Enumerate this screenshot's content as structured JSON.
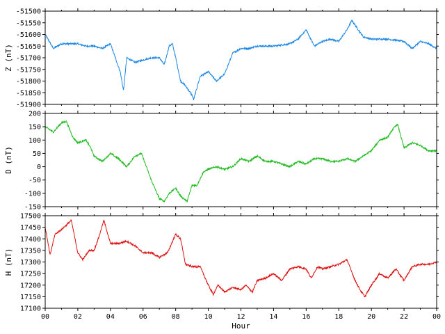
{
  "chart_data": [
    {
      "type": "line",
      "panel": "Z",
      "ylabel": "Z (nT)",
      "color": "#1e88e5",
      "xlim": [
        0,
        24
      ],
      "ylim": [
        -51900,
        -51500
      ],
      "yticks": [
        -51500,
        -51550,
        -51600,
        -51650,
        -51700,
        -51750,
        -51800,
        -51850,
        -51900
      ],
      "series": [
        {
          "x": [
            0,
            0.5,
            1,
            1.5,
            2,
            2.5,
            3,
            3.5,
            4,
            4.3,
            4.6,
            4.8,
            5.0,
            5.5,
            6,
            6.5,
            7.0,
            7.3,
            7.6,
            7.8,
            8.0,
            8.3,
            8.6,
            9.0,
            9.1,
            9.5,
            10.0,
            10.5,
            11.0,
            11.5,
            12,
            12.5,
            13,
            14,
            15,
            15.5,
            16.0,
            16.5,
            17,
            17.5,
            18.0,
            18.5,
            18.8,
            19.0,
            19.5,
            20,
            21,
            22,
            22.5,
            23,
            23.5,
            24
          ],
          "y": [
            -51600,
            -51660,
            -51640,
            -51640,
            -51640,
            -51650,
            -51650,
            -51660,
            -51640,
            -51700,
            -51760,
            -51840,
            -51700,
            -51720,
            -51710,
            -51700,
            -51700,
            -51730,
            -51650,
            -51640,
            -51700,
            -51800,
            -51820,
            -51860,
            -51880,
            -51780,
            -51760,
            -51800,
            -51770,
            -51680,
            -51660,
            -51660,
            -51650,
            -51650,
            -51640,
            -51620,
            -51580,
            -51650,
            -51630,
            -51620,
            -51630,
            -51580,
            -51540,
            -51560,
            -51610,
            -51620,
            -51620,
            -51630,
            -51660,
            -51630,
            -51640,
            -51660
          ]
        }
      ]
    },
    {
      "type": "line",
      "panel": "D",
      "ylabel": "D (nT)",
      "color": "#22bb22",
      "xlim": [
        0,
        24
      ],
      "ylim": [
        -150,
        200
      ],
      "yticks": [
        200,
        150,
        100,
        50,
        0,
        -50,
        -100,
        -150
      ],
      "series": [
        {
          "x": [
            0,
            0.5,
            1,
            1.3,
            1.7,
            2,
            2.5,
            2.8,
            3,
            3.5,
            4,
            4.5,
            5,
            5.5,
            5.9,
            6.2,
            6.5,
            7.0,
            7.3,
            7.6,
            8,
            8.3,
            8.7,
            9.0,
            9.3,
            9.7,
            10,
            10.5,
            11,
            11.5,
            12,
            12.5,
            13,
            13.5,
            14,
            14.5,
            15,
            15.5,
            16,
            16.5,
            17,
            17.5,
            18,
            18.5,
            19,
            19.5,
            20,
            20.5,
            21,
            21.3,
            21.6,
            22,
            22.5,
            23,
            23.5,
            24
          ],
          "y": [
            150,
            130,
            165,
            170,
            110,
            90,
            100,
            70,
            40,
            20,
            50,
            30,
            0,
            40,
            50,
            0,
            -50,
            -120,
            -130,
            -100,
            -80,
            -110,
            -130,
            -70,
            -70,
            -20,
            -10,
            0,
            -10,
            0,
            30,
            20,
            40,
            20,
            20,
            10,
            0,
            20,
            10,
            30,
            30,
            20,
            20,
            30,
            20,
            40,
            60,
            100,
            110,
            140,
            160,
            70,
            90,
            80,
            60,
            60
          ]
        }
      ]
    },
    {
      "type": "line",
      "panel": "H",
      "ylabel": "H (nT)",
      "xlabel": "Hour",
      "color": "#dd1111",
      "xlim": [
        0,
        24
      ],
      "ylim": [
        17100,
        17500
      ],
      "yticks": [
        17500,
        17450,
        17400,
        17350,
        17300,
        17250,
        17200,
        17150,
        17100
      ],
      "xticks": [
        "00",
        "02",
        "04",
        "06",
        "08",
        "10",
        "12",
        "14",
        "16",
        "18",
        "20",
        "22",
        "00"
      ],
      "series": [
        {
          "x": [
            0,
            0.3,
            0.6,
            1.0,
            1.3,
            1.6,
            2.0,
            2.3,
            2.7,
            3.0,
            3.3,
            3.6,
            4.0,
            4.5,
            5.0,
            5.5,
            6,
            6.5,
            7.0,
            7.5,
            8.0,
            8.3,
            8.6,
            9.0,
            9.5,
            10,
            10.3,
            10.6,
            11,
            11.5,
            12,
            12.3,
            12.7,
            13,
            13.5,
            14,
            14.5,
            15,
            15.5,
            16.0,
            16.3,
            16.7,
            17,
            17.5,
            18,
            18.5,
            19,
            19.3,
            19.6,
            20,
            20.5,
            21,
            21.5,
            22,
            22.5,
            23,
            23.5,
            24
          ],
          "y": [
            17450,
            17330,
            17420,
            17440,
            17460,
            17480,
            17340,
            17310,
            17350,
            17350,
            17410,
            17480,
            17380,
            17380,
            17390,
            17370,
            17340,
            17340,
            17320,
            17340,
            17420,
            17400,
            17290,
            17280,
            17280,
            17200,
            17160,
            17200,
            17170,
            17190,
            17180,
            17200,
            17170,
            17220,
            17230,
            17250,
            17220,
            17270,
            17280,
            17270,
            17230,
            17280,
            17270,
            17280,
            17290,
            17310,
            17220,
            17180,
            17150,
            17200,
            17250,
            17230,
            17270,
            17220,
            17280,
            17290,
            17290,
            17300
          ]
        }
      ]
    }
  ]
}
